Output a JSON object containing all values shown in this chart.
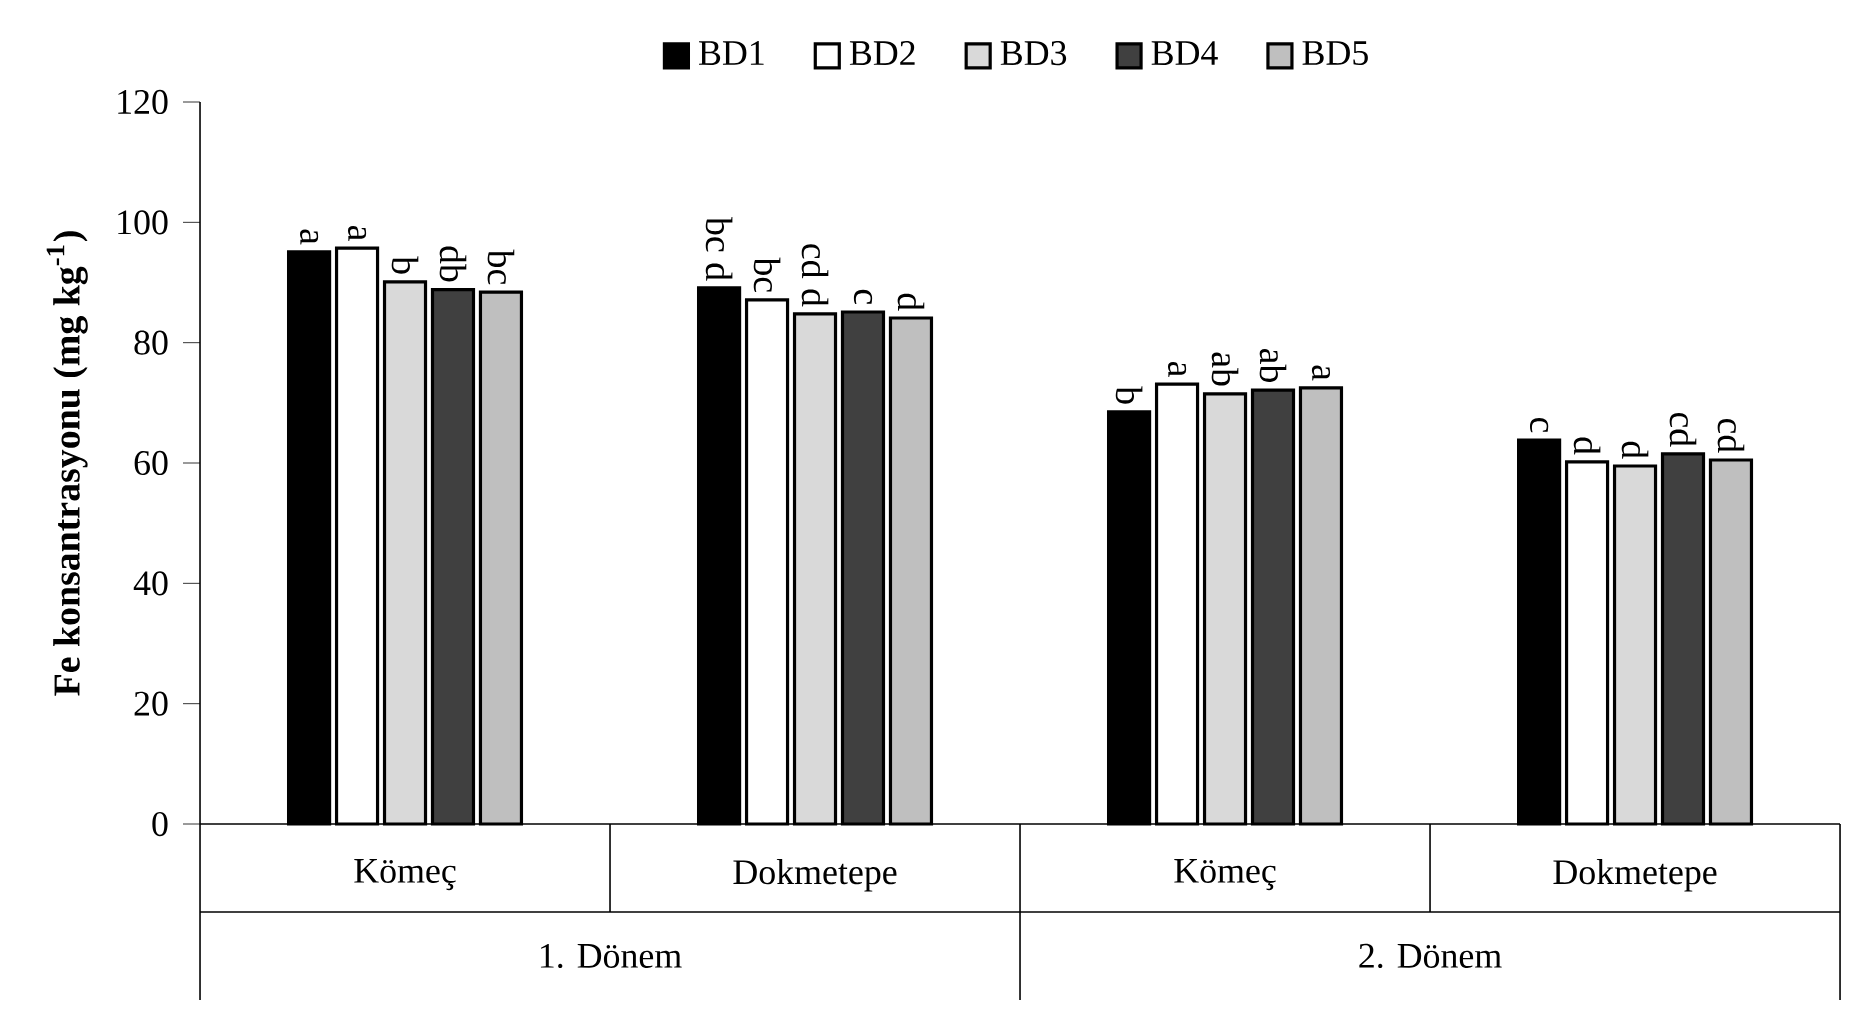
{
  "chart_data": {
    "type": "bar",
    "ylabel": "Fe konsantrasyonu (mg kg$^{-1}$)",
    "categories": [
      "Kömeç",
      "Dokmetepe",
      "Kömeç",
      "Dokmetepe"
    ],
    "series": [
      {
        "name": "BD1",
        "color": "#000000",
        "values": [
          95.1,
          89.1,
          68.5,
          63.8
        ],
        "value_labels": [
          "a",
          "bc d",
          "b",
          "c"
        ]
      },
      {
        "name": "BD2",
        "color": "#ffffff",
        "values": [
          95.7,
          87.1,
          73.1,
          60.2
        ],
        "value_labels": [
          "a",
          "bc",
          "a",
          "d"
        ]
      },
      {
        "name": "BD3",
        "color": "#d9d9d9",
        "values": [
          90.1,
          84.8,
          71.5,
          59.5
        ],
        "value_labels": [
          "b",
          "cd d",
          "ab",
          "d"
        ]
      },
      {
        "name": "BD4",
        "color": "#404040",
        "values": [
          88.8,
          85.1,
          72.1,
          61.5
        ],
        "value_labels": [
          "db",
          "c",
          "ab",
          "cd"
        ]
      },
      {
        "name": "BD5",
        "color": "#bfbfbf",
        "values": [
          88.4,
          84.1,
          72.5,
          60.5
        ],
        "value_labels": [
          "bc",
          "d",
          "a",
          "cd"
        ]
      }
    ],
    "annotations": [
      "1. Dönem",
      "2. Dönem"
    ],
    "ylim": [
      0,
      120
    ],
    "yticks": [
      0,
      20,
      40,
      60,
      80,
      100,
      120
    ],
    "legend": "top",
    "grid": false
  }
}
